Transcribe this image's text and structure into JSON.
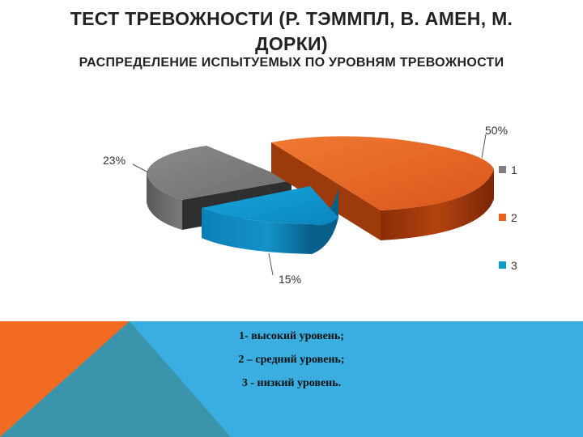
{
  "slide": {
    "title": "ТЕСТ ТРЕВОЖНОСТИ (Р. ТЭММПЛ, В. АМЕН, М. ДОРКИ)",
    "subtitle": "РАСПРЕДЕЛЕНИЕ ИСПЫТУЕМЫХ ПО УРОВНЯМ ТРЕВОЖНОСТИ"
  },
  "chart_data": {
    "type": "pie",
    "style": "3d exploded pie",
    "slices": [
      {
        "category": "1",
        "value": 23,
        "label": "23%",
        "color": "#7f7f7f"
      },
      {
        "category": "2",
        "value": 50,
        "label": "50%",
        "color": "#e8641e"
      },
      {
        "category": "3",
        "value": 15,
        "label": "15%",
        "color": "#0f9bd0"
      }
    ],
    "legend": {
      "placement": "right",
      "entries": [
        "1",
        "2",
        "3"
      ]
    }
  },
  "notes": [
    "1-  высокий уровень;",
    "2 – средний уровень;",
    "3 - низкий уровень."
  ],
  "colors": {
    "band_blue": "#3aaee0",
    "band_orange": "#f26b22",
    "band_teal": "#3a94ab"
  }
}
